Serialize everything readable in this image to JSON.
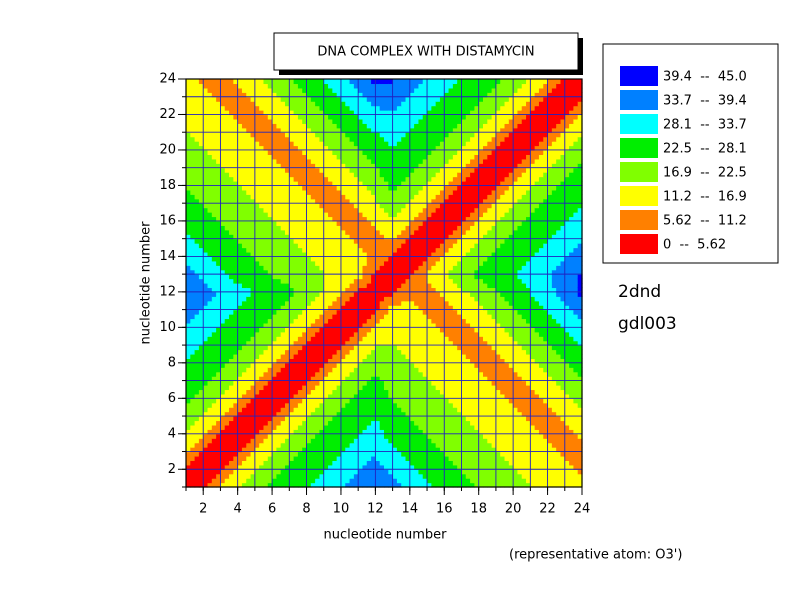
{
  "chart_data": {
    "type": "contour",
    "title": "DNA COMPLEX WITH DISTAMYCIN",
    "xlabel": "nucleotide number",
    "ylabel": "nucleotide number",
    "annotations": [
      "2dnd",
      "gdl003",
      "(representative atom: O3')"
    ],
    "xlim": [
      1,
      24
    ],
    "ylim": [
      1,
      24
    ],
    "xticks": [
      2,
      4,
      6,
      8,
      10,
      12,
      14,
      16,
      18,
      20,
      22,
      24
    ],
    "yticks": [
      2,
      4,
      6,
      8,
      10,
      12,
      14,
      16,
      18,
      20,
      22,
      24
    ],
    "grid": true,
    "grid_color": "#2020c0",
    "x": [
      1,
      2,
      3,
      4,
      5,
      6,
      7,
      8,
      9,
      10,
      11,
      12,
      13,
      14,
      15,
      16,
      17,
      18,
      19,
      20,
      21,
      22,
      23,
      24
    ],
    "y": [
      1,
      2,
      3,
      4,
      5,
      6,
      7,
      8,
      9,
      10,
      11,
      12,
      13,
      14,
      15,
      16,
      17,
      18,
      19,
      20,
      21,
      22,
      23,
      24
    ],
    "legend": [
      {
        "label": "39.4  --  45.0",
        "min": 39.4,
        "max": 45.0,
        "color": "#0000ff"
      },
      {
        "label": "33.7  --  39.4",
        "min": 33.7,
        "max": 39.4,
        "color": "#0080ff"
      },
      {
        "label": "28.1  --  33.7",
        "min": 28.1,
        "max": 33.7,
        "color": "#00ffff"
      },
      {
        "label": "22.5  --  28.1",
        "min": 22.5,
        "max": 28.1,
        "color": "#00ee00"
      },
      {
        "label": "16.9  --  22.5",
        "min": 16.9,
        "max": 22.5,
        "color": "#80ff00"
      },
      {
        "label": "11.2  --  16.9",
        "min": 11.2,
        "max": 16.9,
        "color": "#ffff00"
      },
      {
        "label": "5.62  --  11.2",
        "min": 5.62,
        "max": 11.2,
        "color": "#ff8000"
      },
      {
        "label": "0  --  5.62",
        "min": 0,
        "max": 5.62,
        "color": "#ff0000"
      }
    ],
    "z": [
      [
        0,
        5,
        12,
        17,
        21,
        24,
        26,
        28,
        30,
        33,
        36,
        40,
        36,
        32,
        29,
        26,
        24,
        22,
        20,
        18,
        17,
        16,
        14,
        13
      ],
      [
        5,
        0,
        5,
        12,
        17,
        21,
        24,
        26,
        28,
        30,
        33,
        36,
        32,
        29,
        26,
        24,
        22,
        20,
        18,
        17,
        16,
        14,
        13,
        10
      ],
      [
        12,
        5,
        0,
        5,
        12,
        17,
        21,
        24,
        26,
        28,
        30,
        33,
        29,
        26,
        24,
        22,
        20,
        18,
        17,
        16,
        14,
        13,
        10,
        9
      ],
      [
        17,
        12,
        5,
        0,
        5,
        12,
        17,
        21,
        24,
        26,
        28,
        30,
        26,
        24,
        22,
        20,
        18,
        17,
        16,
        14,
        13,
        10,
        9,
        12
      ],
      [
        21,
        17,
        12,
        5,
        0,
        5,
        12,
        17,
        21,
        24,
        26,
        28,
        24,
        22,
        20,
        18,
        17,
        16,
        14,
        13,
        10,
        9,
        12,
        16
      ],
      [
        24,
        21,
        17,
        12,
        5,
        0,
        5,
        12,
        17,
        21,
        24,
        26,
        22,
        20,
        18,
        17,
        16,
        14,
        13,
        10,
        9,
        12,
        16,
        19
      ],
      [
        26,
        24,
        21,
        17,
        12,
        5,
        0,
        5,
        12,
        17,
        21,
        24,
        20,
        18,
        17,
        16,
        14,
        13,
        10,
        9,
        12,
        16,
        19,
        22
      ],
      [
        28,
        26,
        24,
        21,
        17,
        12,
        5,
        0,
        5,
        12,
        17,
        21,
        18,
        17,
        16,
        14,
        13,
        10,
        9,
        12,
        16,
        19,
        22,
        25
      ],
      [
        30,
        28,
        26,
        24,
        21,
        17,
        12,
        5,
        0,
        5,
        12,
        17,
        17,
        16,
        14,
        13,
        10,
        9,
        12,
        16,
        19,
        22,
        25,
        28
      ],
      [
        33,
        30,
        28,
        26,
        24,
        21,
        17,
        12,
        5,
        0,
        5,
        12,
        16,
        14,
        13,
        10,
        9,
        12,
        16,
        19,
        22,
        25,
        28,
        32
      ],
      [
        36,
        33,
        30,
        28,
        26,
        24,
        21,
        17,
        12,
        5,
        0,
        5,
        14,
        13,
        10,
        9,
        12,
        16,
        19,
        22,
        25,
        28,
        32,
        36
      ],
      [
        40,
        36,
        33,
        30,
        28,
        26,
        24,
        21,
        17,
        12,
        5,
        0,
        5,
        10,
        9,
        12,
        16,
        19,
        22,
        25,
        28,
        32,
        36,
        41
      ],
      [
        36,
        32,
        29,
        26,
        24,
        22,
        20,
        18,
        17,
        16,
        14,
        5,
        0,
        5,
        12,
        17,
        21,
        24,
        26,
        28,
        30,
        33,
        36,
        40
      ],
      [
        32,
        29,
        26,
        24,
        22,
        20,
        18,
        17,
        16,
        14,
        13,
        10,
        5,
        0,
        5,
        12,
        17,
        21,
        24,
        26,
        28,
        30,
        33,
        36
      ],
      [
        29,
        26,
        24,
        22,
        20,
        18,
        17,
        16,
        14,
        13,
        10,
        9,
        12,
        5,
        0,
        5,
        12,
        17,
        21,
        24,
        26,
        28,
        30,
        33
      ],
      [
        26,
        24,
        22,
        20,
        18,
        17,
        16,
        14,
        13,
        10,
        9,
        12,
        17,
        12,
        5,
        0,
        5,
        12,
        17,
        21,
        24,
        26,
        28,
        30
      ],
      [
        24,
        22,
        20,
        18,
        17,
        16,
        14,
        13,
        10,
        9,
        12,
        16,
        21,
        17,
        12,
        5,
        0,
        5,
        12,
        17,
        21,
        24,
        26,
        28
      ],
      [
        22,
        20,
        18,
        17,
        16,
        14,
        13,
        10,
        9,
        12,
        16,
        19,
        24,
        21,
        17,
        12,
        5,
        0,
        5,
        12,
        17,
        21,
        24,
        26
      ],
      [
        20,
        18,
        17,
        16,
        14,
        13,
        10,
        9,
        12,
        16,
        19,
        22,
        26,
        24,
        21,
        17,
        12,
        5,
        0,
        5,
        12,
        17,
        21,
        24
      ],
      [
        18,
        17,
        16,
        14,
        13,
        10,
        9,
        12,
        16,
        19,
        22,
        25,
        28,
        26,
        24,
        21,
        17,
        12,
        5,
        0,
        5,
        12,
        17,
        21
      ],
      [
        17,
        16,
        14,
        13,
        10,
        9,
        12,
        16,
        19,
        22,
        25,
        28,
        30,
        28,
        26,
        24,
        21,
        17,
        12,
        5,
        0,
        5,
        12,
        17
      ],
      [
        16,
        14,
        13,
        10,
        9,
        12,
        16,
        19,
        22,
        25,
        28,
        32,
        33,
        30,
        28,
        26,
        24,
        21,
        17,
        12,
        5,
        0,
        5,
        12
      ],
      [
        14,
        13,
        10,
        9,
        12,
        16,
        19,
        22,
        25,
        28,
        32,
        36,
        36,
        33,
        30,
        28,
        26,
        24,
        21,
        17,
        12,
        5,
        0,
        5
      ],
      [
        13,
        10,
        9,
        12,
        16,
        19,
        22,
        25,
        28,
        32,
        36,
        41,
        40,
        36,
        33,
        30,
        28,
        26,
        24,
        21,
        17,
        12,
        5,
        0
      ]
    ]
  }
}
